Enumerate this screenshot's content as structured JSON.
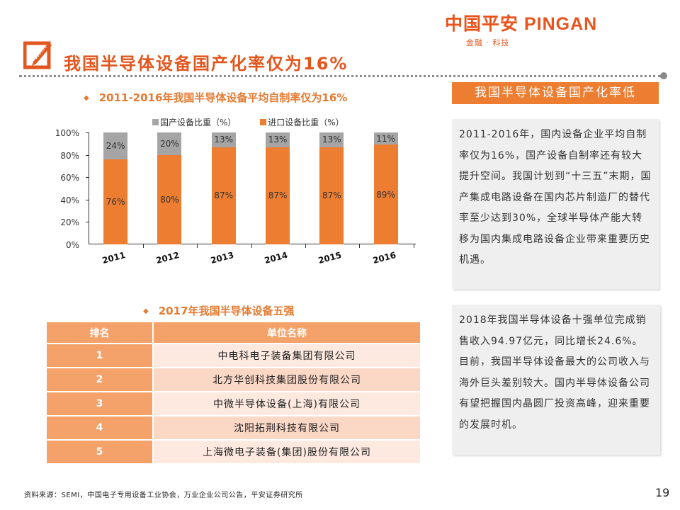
{
  "brand": {
    "logo_text": "中国平安 PINGAN",
    "tagline": "金融 · 科技",
    "accent_color": "#e8541c"
  },
  "page": {
    "title": "我国半导体设备国产化率仅为16%",
    "number": "19",
    "source": "资料来源：SEMI，中国电子专用设备工业协会，万业企业公司公告，平安证券研究所"
  },
  "chart_section": {
    "heading": "2011-2016年我国半导体设备平均自制率仅为16%"
  },
  "table_section": {
    "heading": "2017年我国半导体设备五强",
    "columns": [
      "排名",
      "单位名称"
    ],
    "rows": [
      {
        "rank": "1",
        "name": "中电科电子装备集团有限公司"
      },
      {
        "rank": "2",
        "name": "北方华创科技集团股份有限公司"
      },
      {
        "rank": "3",
        "name": "中微半导体设备(上海)有限公司"
      },
      {
        "rank": "4",
        "name": "沈阳拓荆科技有限公司"
      },
      {
        "rank": "5",
        "name": "上海微电子装备(集团)股份有限公司"
      }
    ]
  },
  "right_panel": {
    "heading": "我国半导体设备国产化率低",
    "paragraph1": "2011-2016年，国内设备企业平均自制率仅为16%，国产设备自制率还有较大提升空间。我国计划到“十三五”末期，国产集成电路设备在国内芯片制造厂的替代率至少达到30%，全球半导体产能大转移为国内集成电路设备企业带来重要历史机遇。",
    "paragraph2": "2018年我国半导体设备十强单位完成销售收入94.97亿元，同比增长24.6%。目前，我国半导体设备最大的公司收入与海外巨头差别较大。国内半导体设备公司有望把握国内晶圆厂投资高峰，迎来重要的发展时机。"
  },
  "chart_data": {
    "type": "bar",
    "stacked": true,
    "title": "2011-2016年我国半导体设备平均自制率仅为16%",
    "categories": [
      "2011",
      "2012",
      "2013",
      "2014",
      "2015",
      "2016"
    ],
    "series": [
      {
        "name": "国产设备比重（%）",
        "color": "#a5a5a5",
        "values": [
          24,
          20,
          13,
          13,
          13,
          11
        ],
        "labels": [
          "24%",
          "20%",
          "13%",
          "13%",
          "13%",
          "11%"
        ]
      },
      {
        "name": "进口设备比重（%）",
        "color": "#ed7d31",
        "values": [
          76,
          80,
          87,
          87,
          87,
          89
        ],
        "labels": [
          "76%",
          "80%",
          "87%",
          "87%",
          "87%",
          "89%"
        ]
      }
    ],
    "yticks": [
      "100%",
      "80%",
      "60%",
      "40%",
      "20%",
      "0%"
    ],
    "ylim": [
      0,
      100
    ],
    "xlabel": "",
    "ylabel": "",
    "grid": false,
    "legend_position": "top"
  }
}
